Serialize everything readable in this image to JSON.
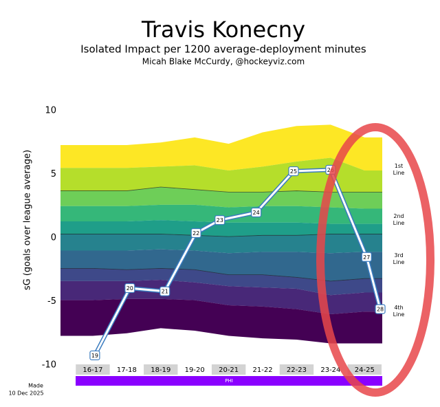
{
  "chart_data": {
    "type": "line",
    "title": "Travis Konecny",
    "subtitle": "Isolated Impact per 1200 average-deployment minutes",
    "author": "Micah Blake McCurdy, @hockeyviz.com",
    "y_label": "sG (goals over league average)",
    "made": "Made",
    "date": "10 Dec 2025",
    "team": "PHI",
    "team_color": "#8a00ff",
    "ylim": [
      -10,
      10
    ],
    "yticks": [
      10,
      5,
      0,
      -5,
      -10
    ],
    "xlim": [
      -0.95,
      8.52
    ],
    "categories": [
      "16-17",
      "17-18",
      "18-19",
      "19-20",
      "20-21",
      "21-22",
      "22-23",
      "23-24",
      "24-25"
    ],
    "line_labels": [
      "1st Line",
      "2nd Line",
      "3rd Line",
      "4th Line"
    ],
    "series": [
      {
        "name": "Travis Konecny",
        "color": "#3a7bbf",
        "x": [
          0.06,
          1.09,
          2.12,
          3.04,
          3.74,
          4.81,
          5.91,
          7.0,
          8.06,
          8.46
        ],
        "values": [
          -9.24,
          -3.95,
          -4.2,
          0.38,
          1.4,
          2.0,
          5.24,
          5.35,
          -1.5,
          -5.6
        ],
        "point_labels": [
          19,
          20,
          21,
          22,
          23,
          24,
          25,
          26,
          27,
          28
        ]
      }
    ],
    "band_colors": [
      "#fde725",
      "#b5de2b",
      "#6ece58",
      "#35b779",
      "#1f9e89",
      "#26828e",
      "#31688e",
      "#3e4989",
      "#482878",
      "#440154"
    ],
    "band_levels": [
      [
        7.3,
        7.3,
        7.5,
        7.9,
        7.4,
        8.3,
        8.8,
        8.9,
        7.9
      ],
      [
        5.5,
        5.5,
        5.6,
        5.7,
        5.3,
        5.6,
        6.0,
        6.3,
        5.3
      ],
      [
        3.7,
        3.7,
        4.0,
        3.8,
        3.6,
        3.6,
        3.7,
        3.6,
        3.6
      ],
      [
        2.5,
        2.5,
        2.6,
        2.6,
        2.4,
        2.5,
        2.5,
        2.4,
        2.3
      ],
      [
        1.3,
        1.3,
        1.4,
        1.3,
        1.2,
        1.2,
        1.2,
        1.1,
        1.1
      ],
      [
        0.3,
        0.3,
        0.3,
        0.2,
        0.1,
        0.2,
        0.2,
        0.3,
        0.3
      ],
      [
        -1.0,
        -1.0,
        -0.9,
        -1.0,
        -1.2,
        -1.1,
        -1.1,
        -1.2,
        -1.1
      ],
      [
        -2.4,
        -2.5,
        -2.4,
        -2.5,
        -2.9,
        -2.9,
        -3.1,
        -3.4,
        -3.2
      ],
      [
        -3.4,
        -3.4,
        -3.3,
        -3.5,
        -3.8,
        -3.9,
        -4.0,
        -4.5,
        -4.3
      ],
      [
        -4.9,
        -4.8,
        -4.8,
        -4.9,
        -5.3,
        -5.4,
        -5.6,
        -6.0,
        -5.8
      ],
      [
        -7.7,
        -7.5,
        -7.1,
        -7.3,
        -7.7,
        -7.9,
        -8.0,
        -8.3,
        -8.3
      ]
    ],
    "dark_levels": [
      2,
      5,
      7
    ]
  }
}
